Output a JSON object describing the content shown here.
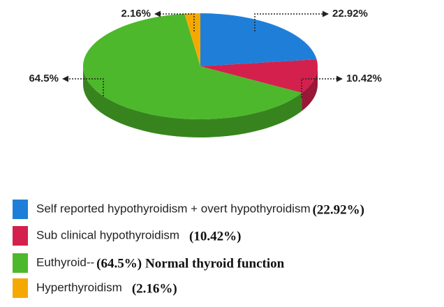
{
  "chart_data": {
    "type": "pie3d",
    "categories": [
      "Self reported hypothyroidism + overt hypothyroidism",
      "Sub clinical hypothyroidism",
      "Euthyroid--",
      "Hyperthyroidism"
    ],
    "values": [
      22.92,
      10.42,
      64.5,
      2.16
    ],
    "value_labels": [
      "22.92%",
      "10.42%",
      "64.5%",
      "2.16%"
    ],
    "legend_value_labels": [
      "(22.92%)",
      "(10.42%)",
      "(64.5%)",
      "(2.16%)"
    ],
    "colors": [
      "#1f7fd8",
      "#d4204c",
      "#4db82b",
      "#f5a900"
    ],
    "annotation": "Normal thyroid function"
  }
}
